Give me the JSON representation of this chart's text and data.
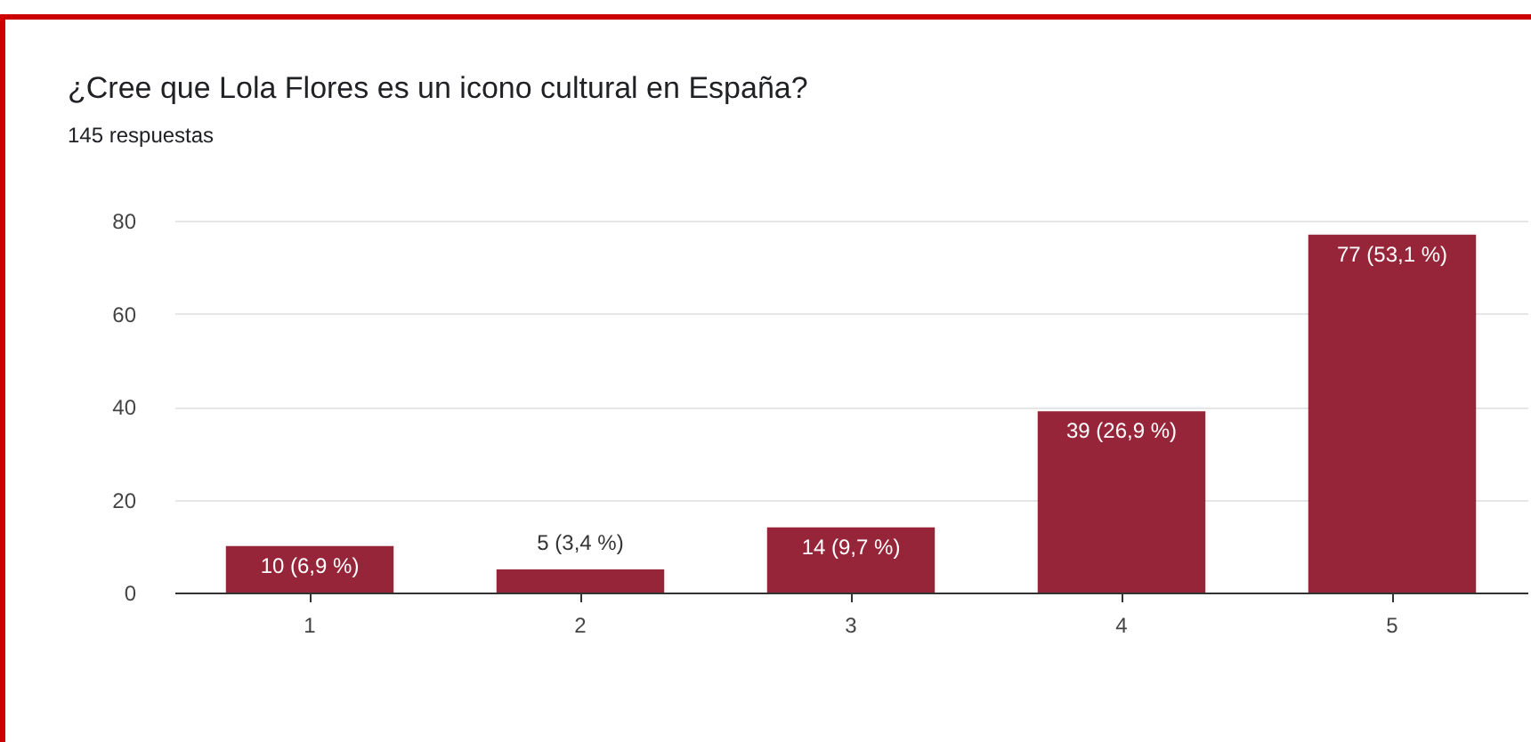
{
  "chart_data": {
    "type": "bar",
    "title": "¿Cree que Lola Flores es un icono cultural en España?",
    "subtitle": "145 respuestas",
    "categories": [
      "1",
      "2",
      "3",
      "4",
      "5"
    ],
    "values": [
      10,
      5,
      14,
      39,
      77
    ],
    "value_labels": [
      "10 (6,9 %)",
      "5 (3,4 %)",
      "14 (9,7 %)",
      "39 (26,9 %)",
      "77 (53,1 %)"
    ],
    "color": "#97253a",
    "ylim": [
      0,
      80
    ],
    "yticks": [
      0,
      20,
      40,
      60,
      80
    ],
    "grid": "y"
  }
}
